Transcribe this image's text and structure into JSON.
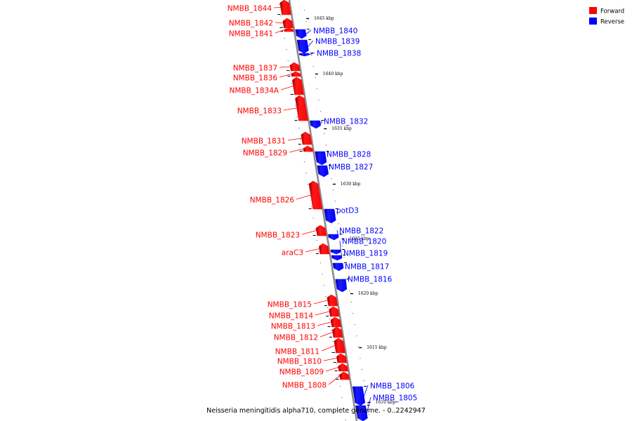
{
  "legend": [
    {
      "label": "Forward",
      "color": "#ff0000"
    },
    {
      "label": "Reverse",
      "color": "#0000ff"
    }
  ],
  "colors": {
    "forward": "#ff0000",
    "reverse": "#0000ff",
    "backbone": "#8c8c8c"
  },
  "caption": "Neisseria meningitidis alpha710, complete genome. - 0..2242947",
  "ticks": [
    {
      "label": "1645 kbp"
    },
    {
      "label": "1640 kbp"
    },
    {
      "label": "1635 kbp"
    },
    {
      "label": "1630 kbp"
    },
    {
      "label": "1625 kbp"
    },
    {
      "label": "1620 kbp"
    },
    {
      "label": "1615 kbp"
    },
    {
      "label": "1610 kbp"
    }
  ],
  "genes": [
    {
      "name": "NMBB_1844",
      "strand": "forward"
    },
    {
      "name": "NMBB_1842",
      "strand": "forward"
    },
    {
      "name": "NMBB_1841",
      "strand": "forward"
    },
    {
      "name": "NMBB_1840",
      "strand": "reverse"
    },
    {
      "name": "NMBB_1839",
      "strand": "reverse"
    },
    {
      "name": "NMBB_1838",
      "strand": "reverse"
    },
    {
      "name": "NMBB_1837",
      "strand": "forward"
    },
    {
      "name": "NMBB_1836",
      "strand": "forward"
    },
    {
      "name": "NMBB_1834A",
      "strand": "forward"
    },
    {
      "name": "NMBB_1833",
      "strand": "forward"
    },
    {
      "name": "NMBB_1832",
      "strand": "reverse"
    },
    {
      "name": "NMBB_1831",
      "strand": "forward"
    },
    {
      "name": "NMBB_1829",
      "strand": "forward"
    },
    {
      "name": "NMBB_1828",
      "strand": "reverse"
    },
    {
      "name": "NMBB_1827",
      "strand": "reverse"
    },
    {
      "name": "NMBB_1826",
      "strand": "forward"
    },
    {
      "name": "potD3",
      "strand": "reverse"
    },
    {
      "name": "NMBB_1823",
      "strand": "forward"
    },
    {
      "name": "NMBB_1822",
      "strand": "reverse"
    },
    {
      "name": "NMBB_1820",
      "strand": "reverse"
    },
    {
      "name": "araC3",
      "strand": "forward"
    },
    {
      "name": "NMBB_1819",
      "strand": "reverse"
    },
    {
      "name": "NMBB_1817",
      "strand": "reverse"
    },
    {
      "name": "NMBB_1816",
      "strand": "reverse"
    },
    {
      "name": "NMBB_1815",
      "strand": "forward"
    },
    {
      "name": "NMBB_1814",
      "strand": "forward"
    },
    {
      "name": "NMBB_1813",
      "strand": "forward"
    },
    {
      "name": "NMBB_1812",
      "strand": "forward"
    },
    {
      "name": "NMBB_1811",
      "strand": "forward"
    },
    {
      "name": "NMBB_1810",
      "strand": "forward"
    },
    {
      "name": "NMBB_1809",
      "strand": "forward"
    },
    {
      "name": "NMBB_1808",
      "strand": "forward"
    },
    {
      "name": "NMBB_1806",
      "strand": "reverse"
    },
    {
      "name": "NMBB_1805",
      "strand": "reverse"
    }
  ]
}
